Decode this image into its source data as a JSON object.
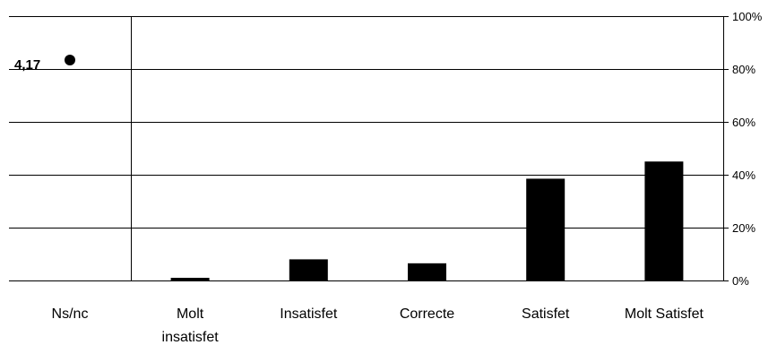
{
  "chart_data": {
    "type": "bar",
    "categories": [
      [
        "Ns/nc"
      ],
      [
        "Molt",
        "insatisfet"
      ],
      [
        "Insatisfet"
      ],
      [
        "Correcte"
      ],
      [
        "Satisfet"
      ],
      [
        "Molt Satisfet"
      ]
    ],
    "values": [
      0,
      1,
      8,
      6.5,
      38.5,
      45
    ],
    "ylim": [
      0,
      100
    ],
    "y_axis_position": "right",
    "y_ticks": [
      "0%",
      "20%",
      "40%",
      "60%",
      "80%",
      "100%"
    ],
    "y_tick_values": [
      0,
      20,
      40,
      60,
      80,
      100
    ],
    "grid": true,
    "bar_color": "#000000",
    "annotation": {
      "text": "4,17",
      "marker": "filled-circle"
    }
  }
}
